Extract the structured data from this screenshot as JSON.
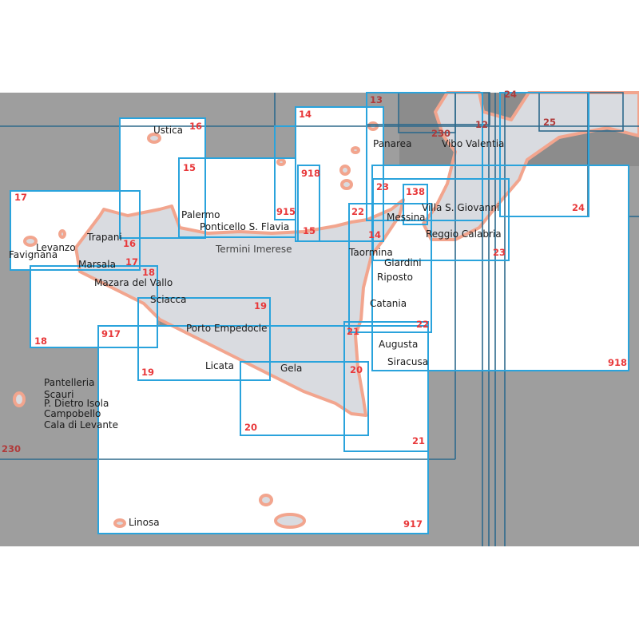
{
  "colors": {
    "sea": "#9e9e9e",
    "sea_dark": "#8c8c8c",
    "land": "#d9dbe0",
    "coast": "#f2a58e",
    "chart_box": "#2aa3dc",
    "chart_box_dark": "#2e6a8c",
    "chart_number": "#e8383a"
  },
  "places": {
    "ustica": "Ustica",
    "palermo": "Palermo",
    "ponticello": "Ponticello S. Flavia",
    "termini": "Termini Imerese",
    "trapani": "Trapani",
    "levanzo": "Levanzo",
    "favignana": "Favignana",
    "marsala": "Marsala",
    "mazara": "Mazara del Vallo",
    "sciacca": "Sciacca",
    "porto_empedocle": "Porto Empedocle",
    "licata": "Licata",
    "gela": "Gela",
    "panarea": "Panarea",
    "vibo": "Vibo Valentia",
    "villa": "Villa S. Giovanni",
    "messina": "Messina",
    "reggio": "Reggio Calabria",
    "taormina": "Taormina",
    "giardini": "Giardini",
    "riposto": "Riposto",
    "catania": "Catania",
    "augusta": "Augusta",
    "siracusa": "Siracusa",
    "pantelleria": "Pantelleria",
    "scauri": "Scauri",
    "dietro_isola": "P. Dietro Isola",
    "campobello": "Campobello",
    "cala_levante": "Cala di Levante",
    "linosa": "Linosa"
  },
  "charts": {
    "c16a": "16",
    "c16b": "16",
    "c15a": "15",
    "c15b": "15",
    "c17a": "17",
    "c17b": "17",
    "c18a": "18",
    "c18b": "18",
    "c19a": "19",
    "c19b": "19",
    "c917a": "917",
    "c917b": "917",
    "c20a": "20",
    "c20b": "20",
    "c21a": "21",
    "c21b": "21",
    "c22a": "22",
    "c22b": "22",
    "c14a": "14",
    "c14b": "14",
    "c918a": "918",
    "c918b": "918",
    "c915": "915",
    "c23a": "23",
    "c23b": "23",
    "c138": "138",
    "c24a": "24",
    "c24b": "24",
    "c25": "25",
    "c13": "13",
    "c12": "12",
    "c230a": "230",
    "c230b": "230"
  }
}
